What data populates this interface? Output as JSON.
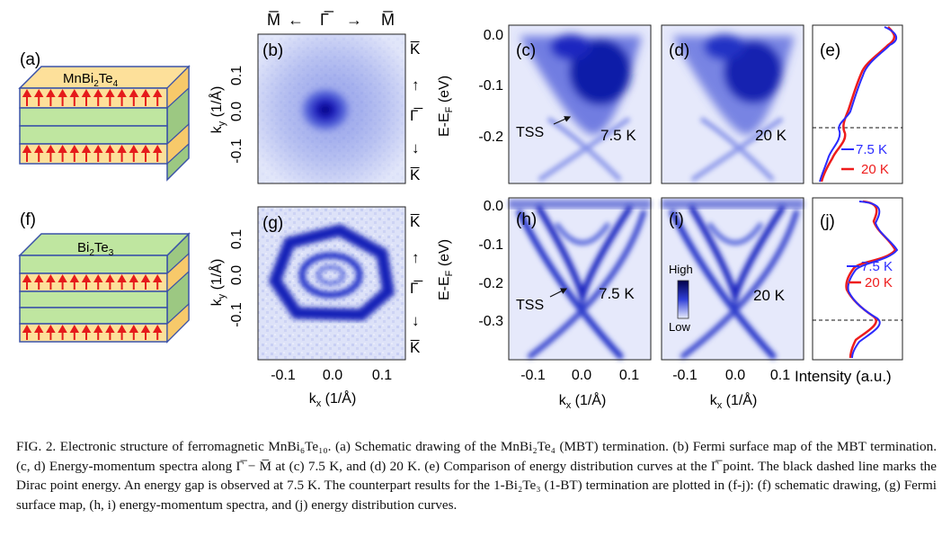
{
  "panel_labels": {
    "a": "(a)",
    "b": "(b)",
    "c": "(c)",
    "d": "(d)",
    "e": "(e)",
    "f": "(f)",
    "g": "(g)",
    "h": "(h)",
    "i": "(i)",
    "j": "(j)"
  },
  "schematic_top": {
    "label_text": "MnBi",
    "label_sub": "2",
    "label_text2": "Te",
    "label_sub2": "4",
    "top_layer_color": "#fde09a",
    "qua_layer_color": "#bfe6a0"
  },
  "schematic_bottom": {
    "label_text": "Bi",
    "label_sub": "2",
    "label_text2": "Te",
    "label_sub2": "3"
  },
  "fermi_map": {
    "top_direction": [
      "M̅",
      "←",
      "Γ̅",
      "→",
      "M̅"
    ],
    "right_direction_top": [
      "K̅",
      "↑",
      "Γ̅",
      "↓",
      "K̅"
    ],
    "right_direction_bottom": [
      "K̅",
      "↑",
      "Γ̅",
      "↓",
      "K̅"
    ],
    "ylabel": "k",
    "ylabel_sub": "y",
    "ylabel_unit": " (1/Å)",
    "y_ticks": [
      "0.1",
      "0.0",
      "-0.1"
    ],
    "x_ticks": [
      "-0.1",
      "0.0",
      "0.1"
    ],
    "xlabel": "k",
    "xlabel_sub": "x",
    "xlabel_unit": " (1/Å)"
  },
  "spectra": {
    "ylabel_top": "E-E",
    "ylabel_sub": "F",
    "ylabel_unit": " (eV)",
    "y_ticks_top": [
      "0.0",
      "-0.1",
      "-0.2"
    ],
    "y_ticks_bottom": [
      "0.0",
      "-0.1",
      "-0.2",
      "-0.3"
    ],
    "x_ticks": [
      "-0.1",
      "0.0",
      "0.1",
      "-0.1",
      "0.0",
      "0.1"
    ],
    "xlabel": "k",
    "xlabel_sub": "x",
    "xlabel_unit": " (1/Å)",
    "temp_c": "7.5 K",
    "temp_d": "20 K",
    "temp_h": "7.5 K",
    "temp_i": "20 K",
    "tss_top": "TSS",
    "tss_bottom": "TSS",
    "colorbar_high": "High",
    "colorbar_low": "Low"
  },
  "edc": {
    "legend": [
      "7.5 K",
      "20 K"
    ],
    "colors": {
      "7.5 K": "#2b2bff",
      "20 K": "#ee1c1c"
    },
    "xlabel": "Intensity (a.u.)"
  },
  "caption": {
    "text": "FIG. 2. Electronic structure of ferromagnetic MnBi₆Te₁₀. (a) Schematic drawing of the MnBi₂Te₄ (MBT) termination. (b) Fermi surface map of the MBT termination. (c, d) Energy-momentum spectra along Γ̅ − M̅ at (c) 7.5 K, and (d) 20 K. (e) Comparison of energy distribution curves at the Γ̅ point. The black dashed line marks the Dirac point energy. An energy gap is observed at 7.5 K. The counterpart results for the 1-Bi₂Te₃ (1-BT) termination are plotted in (f-j): (f) schematic drawing, (g) Fermi surface map, (h, i) energy-momentum spectra, and (j) energy distribution curves."
  }
}
